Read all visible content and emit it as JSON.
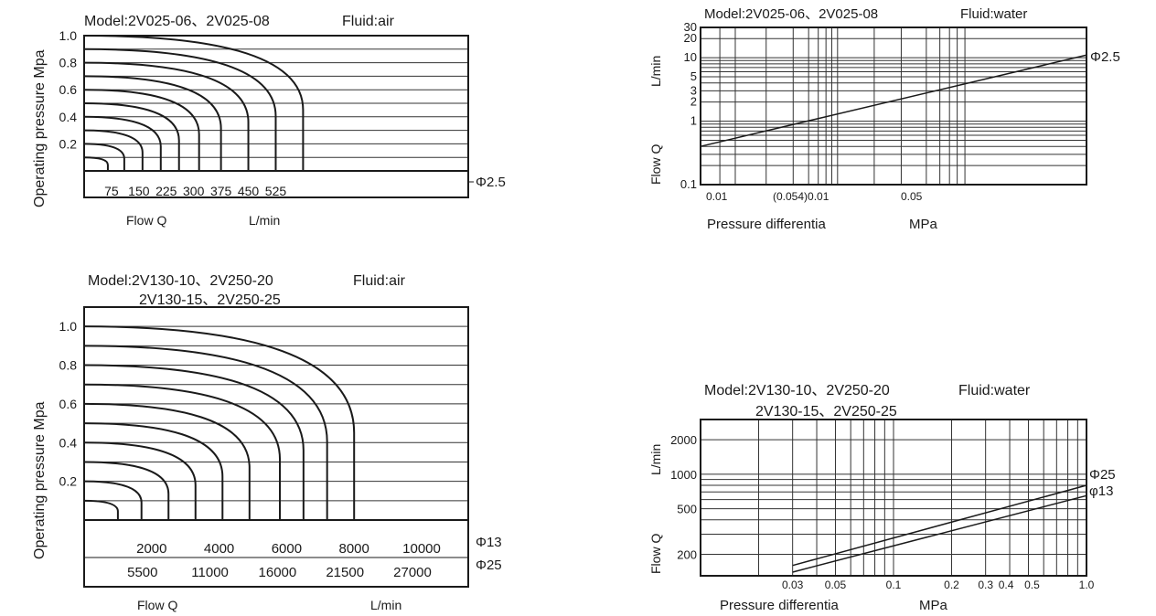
{
  "chart_data": [
    {
      "type": "line",
      "title": "Model:2V025-06、2V025-08",
      "fluid": "Fluid:air",
      "ylabel": "Operating pressure  Mpa",
      "xlabel": "Flow Q",
      "xunit": "L/min",
      "ylim": [
        0,
        1.0
      ],
      "xlim": [
        0,
        600
      ],
      "y_ticks": [
        "1.0",
        "0.8",
        "0.6",
        "0.4",
        "0.2"
      ],
      "x_ticks": [
        "75",
        "150",
        "225",
        "300",
        "375",
        "450",
        "525"
      ],
      "x_tick_values": [
        75,
        150,
        225,
        300,
        375,
        450,
        525
      ],
      "series_label": "Φ2.5",
      "curves": [
        {
          "p1": 1.0,
          "qmax": 600
        },
        {
          "p1": 0.9,
          "qmax": 525
        },
        {
          "p1": 0.8,
          "qmax": 450
        },
        {
          "p1": 0.7,
          "qmax": 375
        },
        {
          "p1": 0.6,
          "qmax": 315
        },
        {
          "p1": 0.5,
          "qmax": 260
        },
        {
          "p1": 0.4,
          "qmax": 210
        },
        {
          "p1": 0.3,
          "qmax": 160
        },
        {
          "p1": 0.2,
          "qmax": 110
        },
        {
          "p1": 0.1,
          "qmax": 65
        }
      ]
    },
    {
      "type": "line",
      "title": "Model:2V025-06、2V025-08",
      "fluid": "Fluid:water",
      "ylabel": "Flow Q",
      "yunit": "L/min",
      "xlabel": "Pressure differentia",
      "xunit": "MPa",
      "yscale": "log",
      "ylim": [
        0.1,
        30
      ],
      "y_ticks": [
        "30",
        "20",
        "10",
        "5",
        "3",
        "2",
        "1",
        "0.1"
      ],
      "y_tick_values": [
        30,
        20,
        10,
        5,
        3,
        2,
        1,
        0.1
      ],
      "x_ticks": [
        "0.01",
        "(0.054)0.01",
        "0.05"
      ],
      "series": [
        {
          "name": "Φ2.5",
          "x": [
            0,
            1
          ],
          "y": [
            0.4,
            11
          ]
        }
      ]
    },
    {
      "type": "line",
      "title": "Model:2V130-10、2V250-20",
      "title2": "2V130-15、2V250-25",
      "fluid": "Fluid:air",
      "ylabel": "Operating pressure  Mpa",
      "xlabel": "Flow Q",
      "xunit": "L/min",
      "ylim": [
        0,
        1.0
      ],
      "xlim": [
        0,
        10000
      ],
      "y_ticks": [
        "1.0",
        "0.8",
        "0.6",
        "0.4",
        "0.2"
      ],
      "x_ticks_row1": [
        "2000",
        "4000",
        "6000",
        "8000",
        "10000"
      ],
      "x_ticks_row2": [
        "5500",
        "11000",
        "16000",
        "21500",
        "27000"
      ],
      "row1_label": "Φ13",
      "row2_label": "Φ25",
      "curves": [
        {
          "p1": 1.0,
          "qmax": 8000
        },
        {
          "p1": 0.9,
          "qmax": 7200
        },
        {
          "p1": 0.8,
          "qmax": 6500
        },
        {
          "p1": 0.7,
          "qmax": 5800
        },
        {
          "p1": 0.6,
          "qmax": 4900
        },
        {
          "p1": 0.5,
          "qmax": 4100
        },
        {
          "p1": 0.4,
          "qmax": 3300
        },
        {
          "p1": 0.3,
          "qmax": 2500
        },
        {
          "p1": 0.2,
          "qmax": 1700
        },
        {
          "p1": 0.1,
          "qmax": 1000
        }
      ]
    },
    {
      "type": "line",
      "title": "Model:2V130-10、2V250-20",
      "title2": "2V130-15、2V250-25",
      "fluid": "Fluid:water",
      "ylabel": "Flow Q",
      "yunit": "L/min",
      "xlabel": "Pressure differentia",
      "xunit": "MPa",
      "xscale": "log",
      "yscale": "log",
      "xlim": [
        0.01,
        1.0
      ],
      "ylim": [
        130,
        3000
      ],
      "x_ticks": [
        "0.03",
        "0.05",
        "0.1",
        "0.2",
        "0.3",
        "0.4",
        "0.5",
        "1.0"
      ],
      "x_tick_values": [
        0.03,
        0.05,
        0.1,
        0.2,
        0.3,
        0.4,
        0.5,
        1.0
      ],
      "y_ticks": [
        "2000",
        "1000",
        "500",
        "200"
      ],
      "y_tick_values": [
        2000,
        1000,
        500,
        200
      ],
      "series": [
        {
          "name": "Φ25",
          "x": [
            0.03,
            1.0
          ],
          "y": [
            160,
            800
          ]
        },
        {
          "name": "φ13",
          "x": [
            0.03,
            1.0
          ],
          "y": [
            140,
            650
          ]
        }
      ]
    }
  ]
}
